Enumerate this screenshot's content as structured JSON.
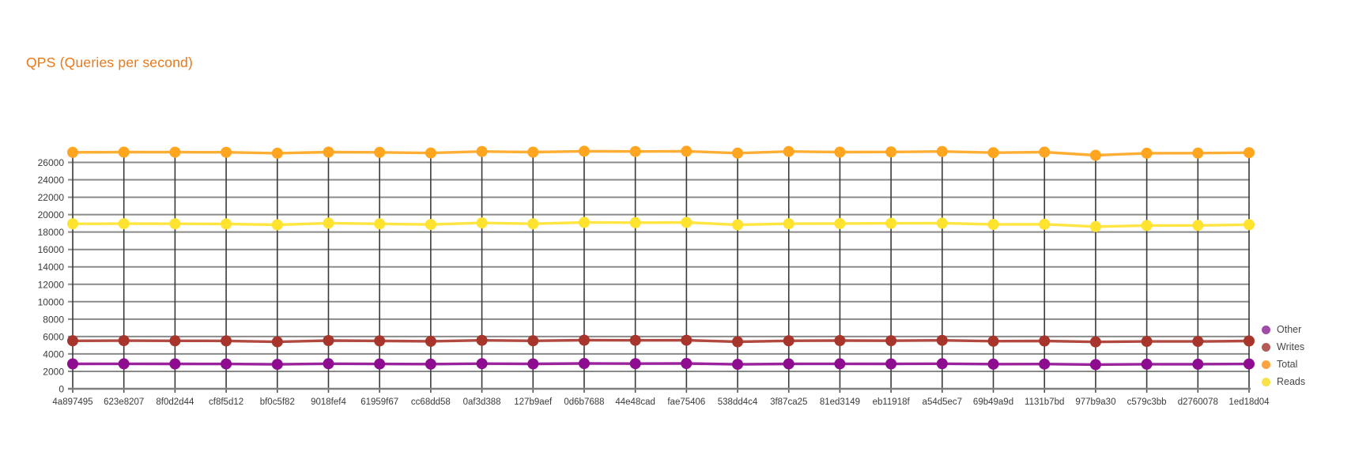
{
  "title": {
    "text": "QPS (Queries per second)",
    "color": "#E97817"
  },
  "legend": {
    "position": "right",
    "order": [
      "Other",
      "Writes",
      "Total",
      "Reads"
    ]
  },
  "axis_colors": {
    "horizontal_grid": "#8A8A8A",
    "vertical_grid": "#3A3A3A",
    "baseline": "#7F7F7F",
    "tick": "#555555",
    "label": "#3B3B3B"
  },
  "chart_data": {
    "type": "line",
    "title": "QPS (Queries per second)",
    "xlabel": "",
    "ylabel": "",
    "ylim": [
      0,
      27400
    ],
    "y_axis": {
      "min": 0,
      "grid_max": 26000,
      "tick_step": 2000
    },
    "grid": {
      "horizontal": true,
      "vertical": true
    },
    "legend_position": "right",
    "categories": [
      "4a897495",
      "623e8207",
      "8f0d2d44",
      "cf8f5d12",
      "bf0c5f82",
      "9018fef4",
      "61959f67",
      "cc68dd58",
      "0af3d388",
      "127b9aef",
      "0d6b7688",
      "44e48cad",
      "fae75406",
      "538dd4c4",
      "3f87ca25",
      "81ed3149",
      "eb11918f",
      "a54d5ec7",
      "69b49a9d",
      "1131b7bd",
      "977b9a30",
      "c579c3bb",
      "d2760078",
      "1ed18d04"
    ],
    "series": [
      {
        "name": "Writes",
        "color": "#A8352B",
        "legend_color": "#B25B57",
        "values": [
          5510,
          5530,
          5510,
          5500,
          5390,
          5540,
          5500,
          5450,
          5560,
          5510,
          5580,
          5560,
          5570,
          5400,
          5510,
          5540,
          5520,
          5560,
          5460,
          5490,
          5380,
          5440,
          5440,
          5490
        ]
      },
      {
        "name": "Other",
        "color": "#8E0C90",
        "legend_color": "#A04BA8",
        "values": [
          2860,
          2870,
          2860,
          2850,
          2800,
          2880,
          2850,
          2830,
          2890,
          2860,
          2900,
          2890,
          2900,
          2800,
          2860,
          2870,
          2860,
          2880,
          2830,
          2840,
          2780,
          2820,
          2820,
          2850
        ]
      },
      {
        "name": "Total",
        "color": "#FFA51F",
        "legend_color": "#F9A441",
        "values": [
          27150,
          27180,
          27170,
          27160,
          27050,
          27180,
          27150,
          27080,
          27250,
          27180,
          27280,
          27250,
          27280,
          27060,
          27250,
          27180,
          27200,
          27250,
          27120,
          27180,
          26820,
          27050,
          27060,
          27120
        ]
      },
      {
        "name": "Reads",
        "color": "#FFE32E",
        "legend_color": "#F8E14A",
        "values": [
          18950,
          18960,
          18950,
          18930,
          18830,
          19020,
          18940,
          18870,
          19050,
          18950,
          19100,
          19080,
          19100,
          18830,
          18960,
          18980,
          19000,
          19020,
          18880,
          18890,
          18620,
          18750,
          18760,
          18850
        ]
      }
    ]
  }
}
